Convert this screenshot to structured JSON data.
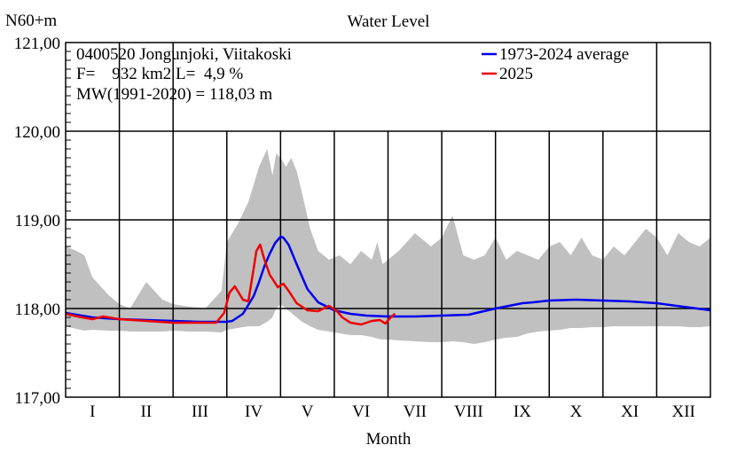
{
  "chart_data": {
    "type": "line",
    "title": "Water Level",
    "ylabel": "N60+m",
    "xlabel": "Month",
    "ylim": [
      117.0,
      121.0
    ],
    "yticks": [
      "117,00",
      "118,00",
      "119,00",
      "120,00",
      "121,00"
    ],
    "ytick_values": [
      117,
      118,
      119,
      120,
      121
    ],
    "categories": [
      "I",
      "II",
      "III",
      "IV",
      "V",
      "VI",
      "VII",
      "VIII",
      "IX",
      "X",
      "XI",
      "XII"
    ],
    "info_lines": [
      "0400520 Jongunjoki, Viitakoski",
      "F=    932 km2 L=  4,9 %",
      "MW(1991-2020) = 118,03 m"
    ],
    "legend": {
      "position": "top-right"
    },
    "grid": true,
    "colors": {
      "average": "#0000ee",
      "current": "#ee0000",
      "band": "#c0c0c0"
    },
    "series": [
      {
        "name": "1973-2024 average",
        "color": "#0000ee",
        "x": [
          0,
          0.5,
          1,
          1.5,
          2,
          2.5,
          3,
          3.1,
          3.3,
          3.5,
          3.6,
          3.7,
          3.8,
          3.9,
          4.0,
          4.05,
          4.15,
          4.3,
          4.5,
          4.7,
          5.0,
          5.3,
          5.6,
          6.0,
          6.5,
          7.0,
          7.5,
          8.0,
          8.5,
          8.7,
          9.0,
          9.5,
          10.0,
          10.5,
          11.0,
          11.5,
          12.0
        ],
        "values": [
          117.95,
          117.9,
          117.88,
          117.87,
          117.86,
          117.85,
          117.85,
          117.86,
          117.94,
          118.14,
          118.3,
          118.48,
          118.62,
          118.74,
          118.81,
          118.8,
          118.72,
          118.5,
          118.22,
          118.07,
          117.98,
          117.94,
          117.92,
          117.91,
          117.91,
          117.92,
          117.93,
          118.0,
          118.06,
          118.07,
          118.09,
          118.1,
          118.09,
          118.08,
          118.06,
          118.02,
          117.98
        ]
      },
      {
        "name": "2025",
        "color": "#ee0000",
        "x": [
          0,
          0.3,
          0.5,
          0.7,
          1.0,
          1.5,
          2.0,
          2.5,
          2.8,
          2.95,
          3.05,
          3.15,
          3.3,
          3.4,
          3.5,
          3.55,
          3.62,
          3.7,
          3.8,
          3.95,
          4.05,
          4.15,
          4.3,
          4.5,
          4.7,
          4.9,
          5.05,
          5.15,
          5.3,
          5.5,
          5.7,
          5.85,
          5.95,
          6.05,
          6.13
        ],
        "values": [
          117.94,
          117.9,
          117.88,
          117.91,
          117.88,
          117.86,
          117.84,
          117.84,
          117.84,
          117.95,
          118.18,
          118.25,
          118.1,
          118.08,
          118.45,
          118.65,
          118.72,
          118.55,
          118.38,
          118.24,
          118.28,
          118.2,
          118.06,
          117.98,
          117.97,
          118.03,
          117.97,
          117.9,
          117.84,
          117.82,
          117.86,
          117.87,
          117.83,
          117.9,
          117.94
        ]
      }
    ],
    "band": {
      "x": [
        0,
        0.2,
        0.35,
        0.5,
        0.8,
        1.0,
        1.2,
        1.5,
        1.8,
        2.0,
        2.3,
        2.6,
        2.9,
        3.0,
        3.2,
        3.4,
        3.6,
        3.75,
        3.85,
        3.92,
        4.0,
        4.1,
        4.2,
        4.3,
        4.4,
        4.55,
        4.7,
        4.9,
        5.1,
        5.3,
        5.5,
        5.7,
        5.8,
        5.9,
        6.0,
        6.2,
        6.5,
        6.8,
        7.0,
        7.2,
        7.4,
        7.6,
        7.8,
        8.0,
        8.2,
        8.4,
        8.6,
        8.8,
        9.0,
        9.2,
        9.4,
        9.6,
        9.8,
        10.0,
        10.2,
        10.4,
        10.6,
        10.8,
        11.0,
        11.2,
        11.4,
        11.6,
        11.8,
        12.0
      ],
      "upper": [
        118.7,
        118.65,
        118.6,
        118.35,
        118.15,
        118.05,
        118.0,
        118.3,
        118.1,
        118.05,
        118.02,
        118.0,
        118.2,
        118.75,
        118.95,
        119.2,
        119.6,
        119.8,
        119.5,
        119.75,
        119.7,
        119.6,
        119.7,
        119.55,
        119.3,
        118.9,
        118.65,
        118.55,
        118.6,
        118.5,
        118.65,
        118.55,
        118.75,
        118.5,
        118.55,
        118.65,
        118.85,
        118.7,
        118.8,
        119.05,
        118.6,
        118.55,
        118.6,
        118.8,
        118.55,
        118.65,
        118.6,
        118.55,
        118.7,
        118.75,
        118.6,
        118.8,
        118.6,
        118.55,
        118.7,
        118.6,
        118.75,
        118.9,
        118.8,
        118.6,
        118.85,
        118.75,
        118.7,
        118.8
      ],
      "lower": [
        117.8,
        117.77,
        117.75,
        117.76,
        117.75,
        117.75,
        117.74,
        117.74,
        117.74,
        117.75,
        117.74,
        117.74,
        117.73,
        117.76,
        117.78,
        117.8,
        117.8,
        117.85,
        117.9,
        118.0,
        118.05,
        118.0,
        117.95,
        117.9,
        117.85,
        117.8,
        117.76,
        117.74,
        117.72,
        117.7,
        117.7,
        117.68,
        117.66,
        117.65,
        117.65,
        117.64,
        117.63,
        117.62,
        117.62,
        117.63,
        117.62,
        117.6,
        117.62,
        117.65,
        117.67,
        117.68,
        117.72,
        117.74,
        117.75,
        117.76,
        117.78,
        117.78,
        117.79,
        117.79,
        117.8,
        117.8,
        117.8,
        117.8,
        117.8,
        117.8,
        117.8,
        117.79,
        117.79,
        117.8
      ]
    }
  }
}
